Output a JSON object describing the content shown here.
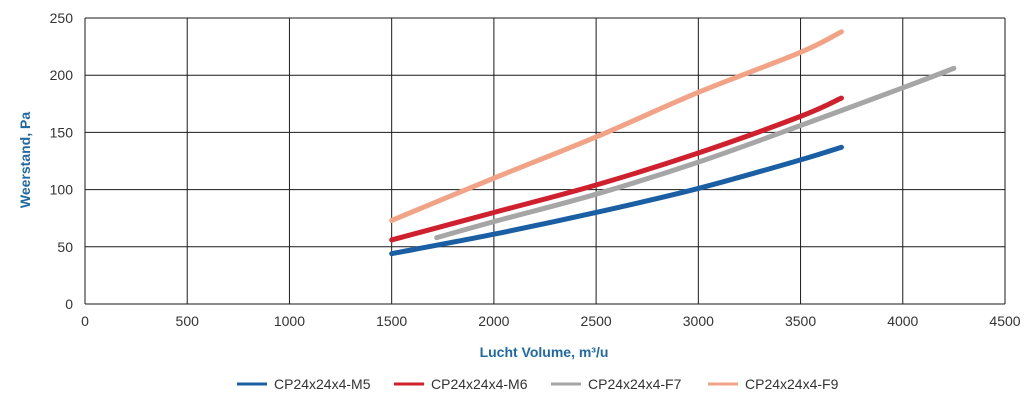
{
  "chart_data": {
    "type": "line",
    "title": "",
    "xlabel": "Lucht Volume, m³/u",
    "ylabel": "Weerstand, Pa",
    "xlim": [
      0,
      4500
    ],
    "ylim": [
      0,
      250
    ],
    "xticks": [
      0,
      500,
      1000,
      1500,
      2000,
      2500,
      3000,
      3500,
      4000,
      4500
    ],
    "yticks": [
      0,
      50,
      100,
      150,
      200,
      250
    ],
    "grid": true,
    "legend_position": "bottom",
    "series": [
      {
        "name": "CP24x24x4-M5",
        "color": "#1a5fa3",
        "x": [
          1500,
          2000,
          2500,
          3000,
          3500,
          3700
        ],
        "y": [
          44,
          61,
          80,
          101,
          126,
          137
        ]
      },
      {
        "name": "CP24x24x4-M6",
        "color": "#d0202e",
        "x": [
          1500,
          2000,
          2500,
          3000,
          3500,
          3700
        ],
        "y": [
          56,
          80,
          104,
          132,
          164,
          180
        ]
      },
      {
        "name": "CP24x24x4-F7",
        "color": "#a6a6a6",
        "x": [
          1720,
          2000,
          2500,
          3000,
          3500,
          4000,
          4250
        ],
        "y": [
          58,
          72,
          96,
          124,
          156,
          189,
          206
        ]
      },
      {
        "name": "CP24x24x4-F9",
        "color": "#f2a386",
        "x": [
          1500,
          2000,
          2500,
          3000,
          3500,
          3700
        ],
        "y": [
          73,
          110,
          146,
          185,
          220,
          238
        ]
      }
    ]
  }
}
